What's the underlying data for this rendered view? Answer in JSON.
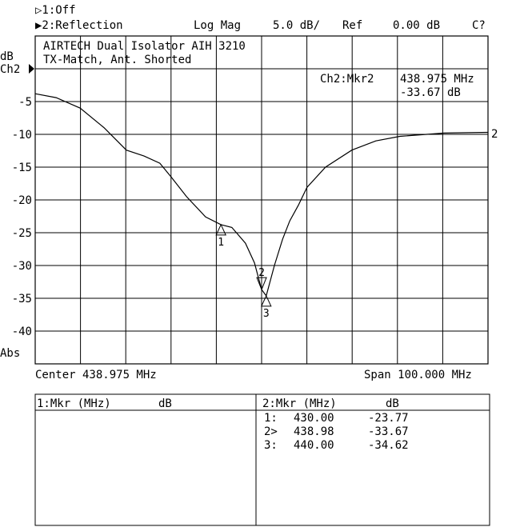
{
  "header": {
    "ch1": "▷1:Off",
    "ch2": "▶2:Reflection",
    "format": "Log Mag",
    "scale": "5.0 dB/",
    "ref_label": "Ref",
    "ref_value": "0.00 dB",
    "cal_status": "C?"
  },
  "left_axis": {
    "unit": "dB",
    "channel": "Ch2",
    "ref_arrow_icon": "triangle-right-icon",
    "ticks": [
      "-5",
      "-10",
      "-15",
      "-20",
      "-25",
      "-30",
      "-35",
      "-40"
    ],
    "mode": "Abs"
  },
  "title_lines": [
    "AIRTECH Dual Isolator AIH 3210",
    "TX-Match, Ant. Shorted"
  ],
  "active_marker": {
    "label": "Ch2:Mkr2",
    "freq": "438.975 MHz",
    "value": "-33.67 dB"
  },
  "footer": {
    "center": "Center 438.975 MHz",
    "span": "Span 100.000 MHz"
  },
  "trace_label": "2",
  "markers": [
    {
      "id": "1",
      "freq": 430.0,
      "db": -23.77,
      "active": false
    },
    {
      "id": "2",
      "freq": 438.98,
      "db": -33.67,
      "active": true
    },
    {
      "id": "3",
      "freq": 440.0,
      "db": -34.62,
      "active": false
    }
  ],
  "table": {
    "ch1_header": {
      "mkr": "1:Mkr (MHz)",
      "unit": "dB"
    },
    "ch2_header": {
      "mkr": "2:Mkr (MHz)",
      "unit": "dB"
    },
    "ch2_rows": [
      {
        "id": "1:",
        "freq": "430.00",
        "db": "-23.77"
      },
      {
        "id": "2>",
        "freq": "438.98",
        "db": "-33.67"
      },
      {
        "id": "3:",
        "freq": "440.00",
        "db": "-34.62"
      }
    ]
  },
  "chart_data": {
    "type": "line",
    "xlabel": "",
    "ylabel": "dB",
    "xlim": [
      388.975,
      488.975
    ],
    "ylim": [
      -45,
      5
    ],
    "grid": true,
    "color": "#000000",
    "series": [
      {
        "name": "2",
        "x": [
          388.98,
          393.6,
          398.9,
          404.2,
          409.1,
          413.0,
          416.5,
          419.0,
          422.4,
          426.6,
          430.0,
          432.4,
          435.4,
          437.4,
          438.98,
          440.0,
          441.8,
          443.6,
          445.2,
          447.1,
          449.0,
          453.1,
          458.9,
          464.2,
          469.5,
          479.3,
          489.0
        ],
        "y": [
          -3.8,
          -4.4,
          -6.0,
          -9.0,
          -12.4,
          -13.3,
          -14.4,
          -16.5,
          -19.5,
          -22.6,
          -23.77,
          -24.2,
          -26.6,
          -29.6,
          -33.67,
          -34.62,
          -30.0,
          -26.0,
          -23.2,
          -20.8,
          -18.1,
          -15.0,
          -12.4,
          -11.0,
          -10.3,
          -9.8,
          -9.7
        ]
      }
    ]
  }
}
